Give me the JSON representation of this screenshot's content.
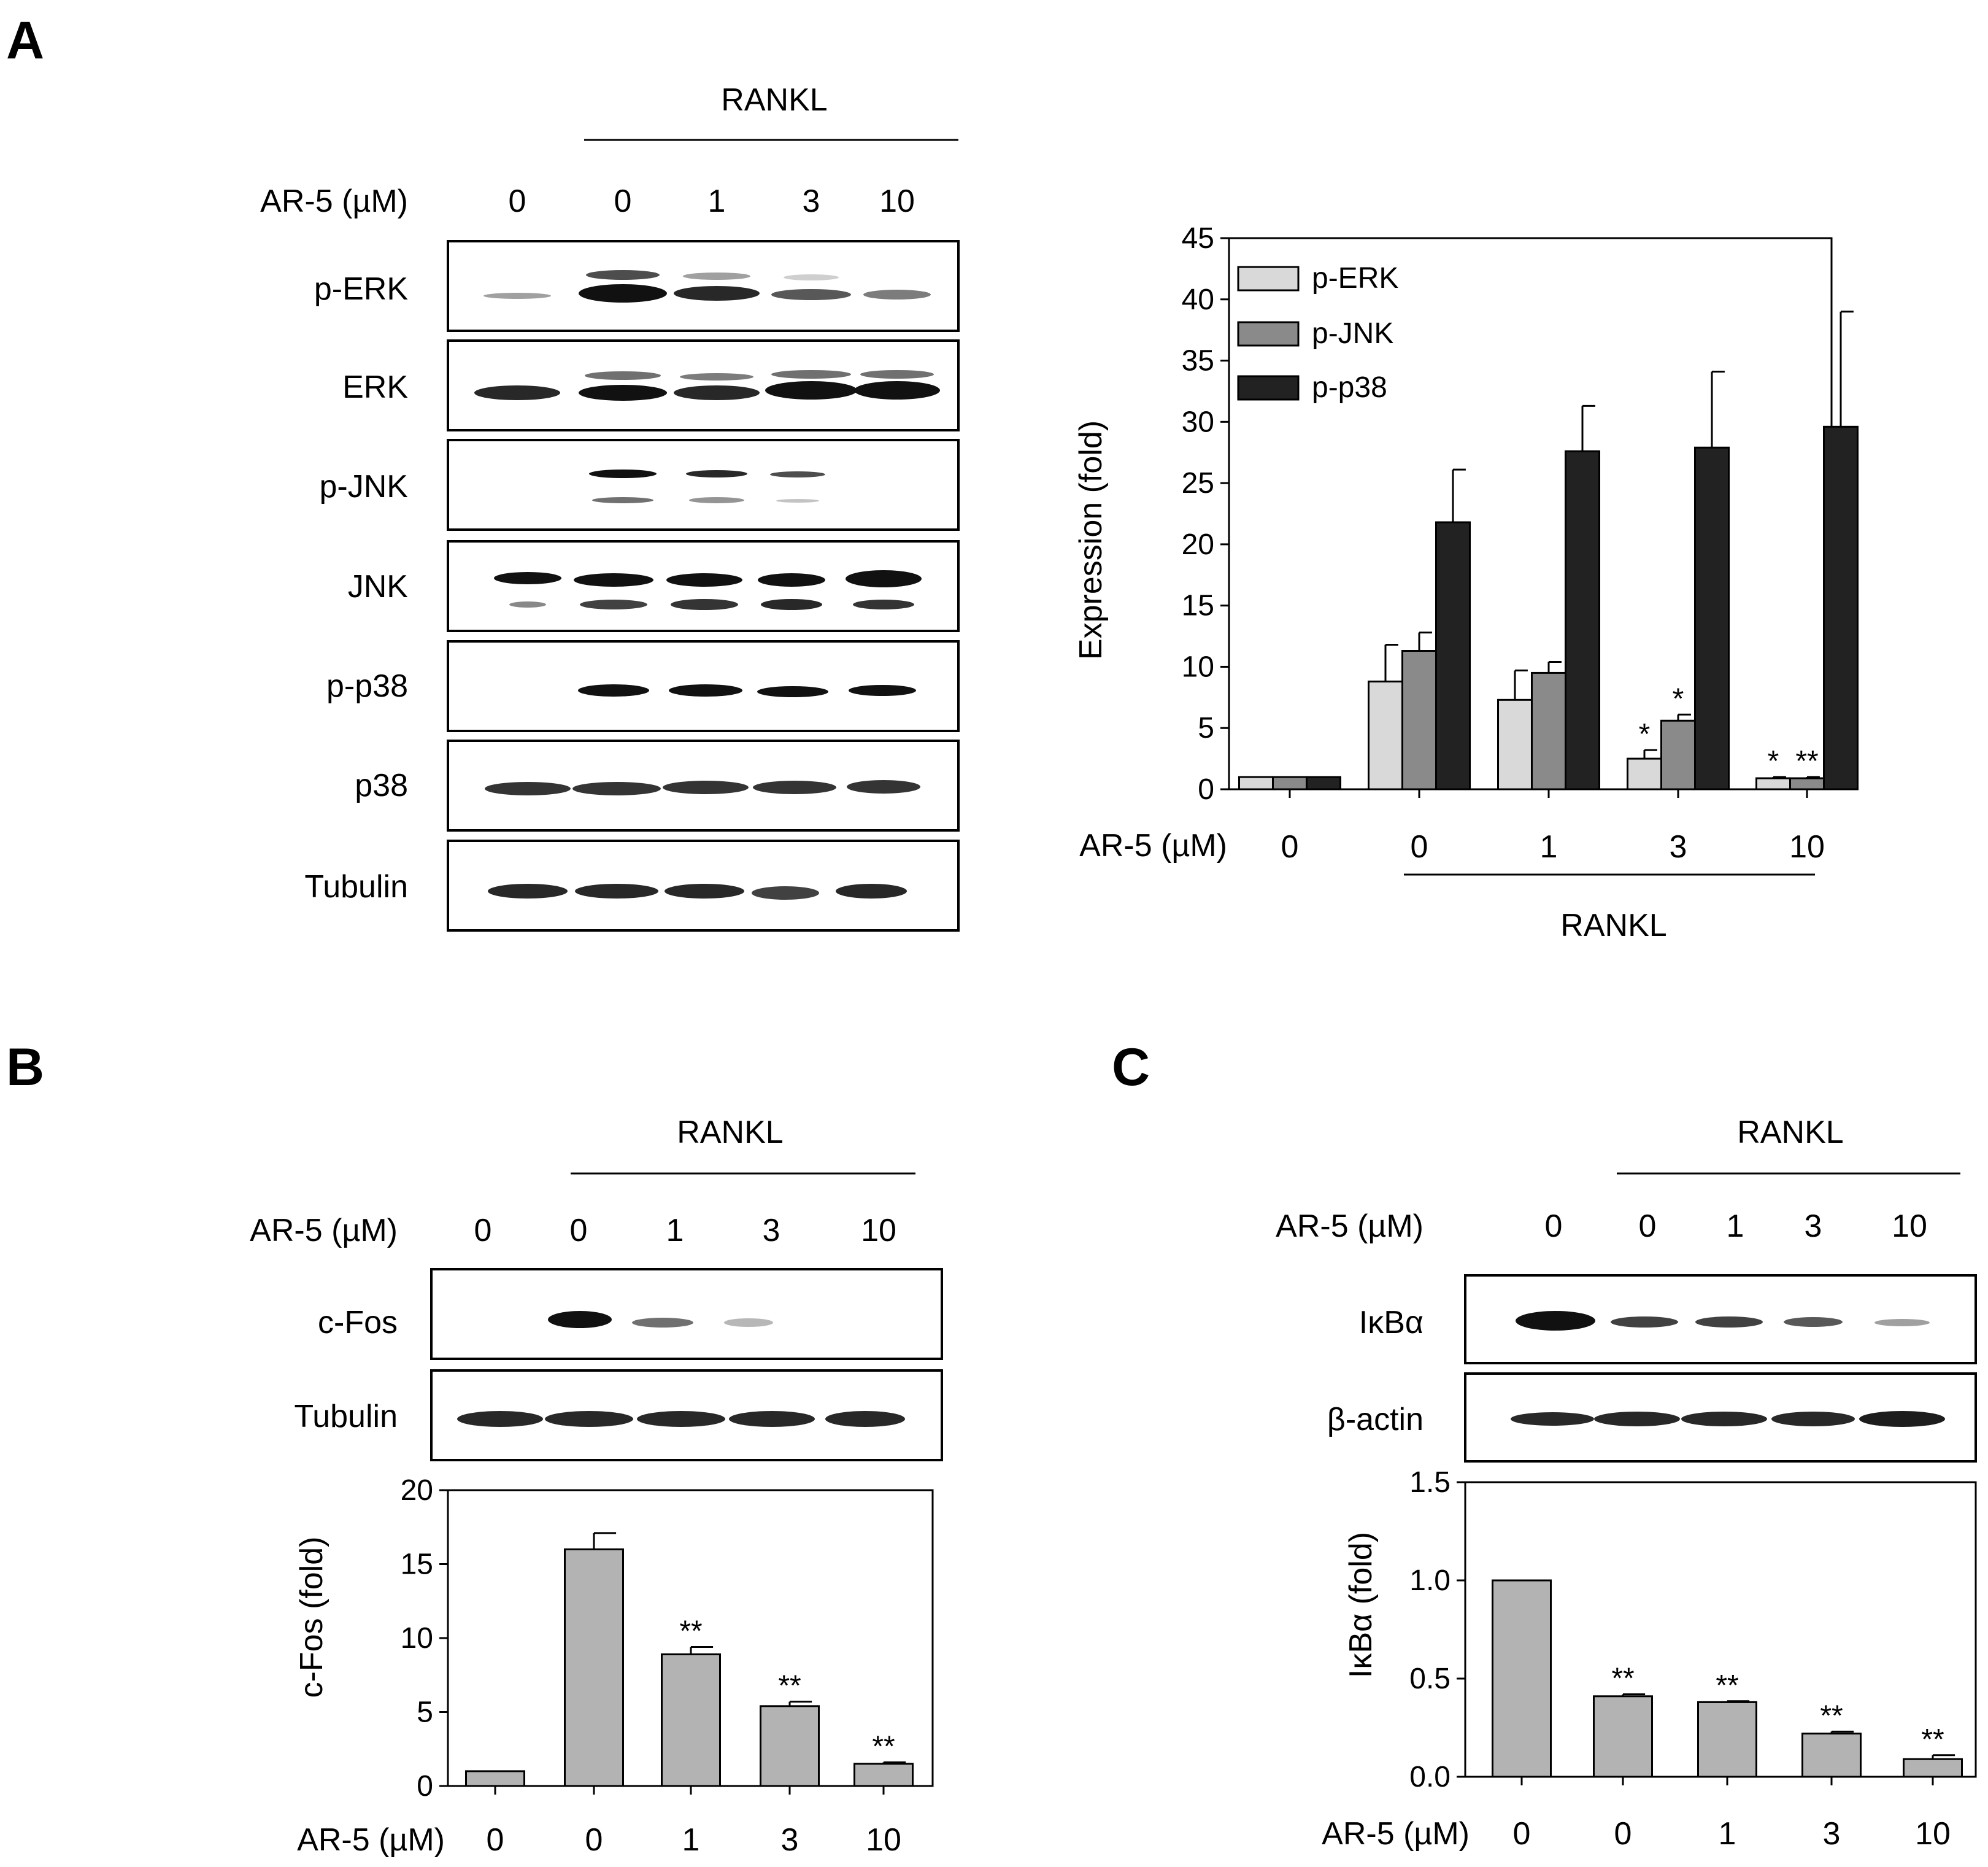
{
  "panels": {
    "A": {
      "label": "A",
      "treatment_label": "RANKL",
      "dose_label": "AR-5 (µM)",
      "doses": [
        "0",
        "0",
        "1",
        "3",
        "10"
      ],
      "blot_rows": [
        "p-ERK",
        "ERK",
        "p-JNK",
        "JNK",
        "p-p38",
        "p38",
        "Tubulin"
      ]
    },
    "B": {
      "label": "B",
      "treatment_label": "RANKL",
      "dose_label": "AR-5 (µM)",
      "doses": [
        "0",
        "0",
        "1",
        "3",
        "10"
      ],
      "blot_rows": [
        "c-Fos",
        "Tubulin"
      ]
    },
    "C": {
      "label": "C",
      "treatment_label": "RANKL",
      "dose_label": "AR-5 (µM)",
      "doses": [
        "0",
        "0",
        "1",
        "3",
        "10"
      ],
      "blot_rows": [
        "IκBα",
        "β-actin"
      ]
    }
  },
  "chart_data": [
    {
      "id": "A",
      "type": "bar",
      "title": "",
      "xlabel": "AR-5 (µM)",
      "ylabel": "Expression (fold)",
      "group_label": "RANKL",
      "categories": [
        "0",
        "0",
        "1",
        "3",
        "10"
      ],
      "ylim": [
        0,
        45
      ],
      "yticks": [
        "0",
        "5",
        "10",
        "15",
        "20",
        "25",
        "30",
        "35",
        "40",
        "45"
      ],
      "legend": "top-left",
      "series": [
        {
          "name": "p-ERK",
          "color": "#d9d9d9",
          "values": [
            1.0,
            8.8,
            7.3,
            2.5,
            0.9
          ],
          "errors": [
            0,
            3.0,
            2.4,
            0.7,
            0.1
          ],
          "sig": [
            "",
            "",
            "",
            "*",
            "*"
          ]
        },
        {
          "name": "p-JNK",
          "color": "#8a8a8a",
          "values": [
            1.0,
            11.3,
            9.5,
            5.6,
            0.9
          ],
          "errors": [
            0,
            1.5,
            0.9,
            0.5,
            0.1
          ],
          "sig": [
            "",
            "",
            "",
            "*",
            "**"
          ]
        },
        {
          "name": "p-p38",
          "color": "#222222",
          "values": [
            1.0,
            21.8,
            27.6,
            27.9,
            29.6
          ],
          "errors": [
            0,
            4.3,
            3.7,
            6.2,
            9.4
          ],
          "sig": [
            "",
            "",
            "",
            "",
            ""
          ]
        }
      ]
    },
    {
      "id": "B",
      "type": "bar",
      "title": "",
      "xlabel": "AR-5 (µM)",
      "ylabel": "c-Fos (fold)",
      "categories": [
        "0",
        "0",
        "1",
        "3",
        "10"
      ],
      "ylim": [
        0,
        20
      ],
      "yticks": [
        "0",
        "5",
        "10",
        "15",
        "20"
      ],
      "color": "#b3b3b3",
      "values": [
        1.0,
        16.0,
        8.9,
        5.4,
        1.5
      ],
      "errors": [
        0,
        1.1,
        0.5,
        0.3,
        0.1
      ],
      "sig": [
        "",
        "",
        "**",
        "**",
        "**"
      ]
    },
    {
      "id": "C",
      "type": "bar",
      "title": "",
      "xlabel": "AR-5 (µM)",
      "ylabel": "IκBα (fold)",
      "categories": [
        "0",
        "0",
        "1",
        "3",
        "10"
      ],
      "ylim": [
        0,
        1.5
      ],
      "yticks": [
        "0.0",
        "0.5",
        "1.0",
        "1.5"
      ],
      "color": "#b3b3b3",
      "values": [
        1.0,
        0.41,
        0.38,
        0.22,
        0.09
      ],
      "errors": [
        0,
        0.01,
        0.005,
        0.01,
        0.02
      ],
      "sig": [
        "",
        "**",
        "**",
        "**",
        "**"
      ]
    }
  ]
}
